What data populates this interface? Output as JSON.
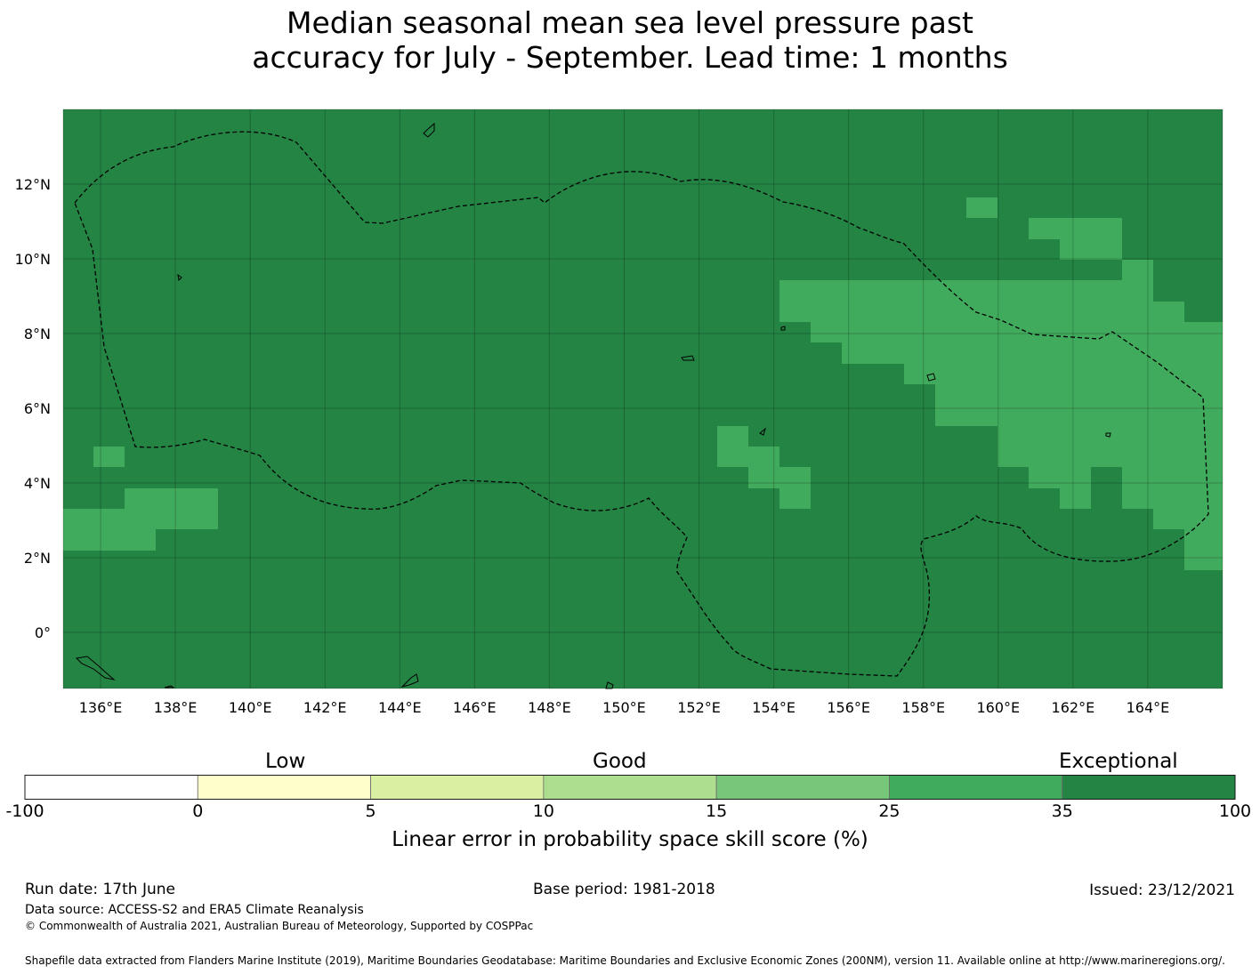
{
  "title": {
    "line1": "Median seasonal mean sea level pressure past",
    "line2": "accuracy for July - September. Lead time: 1 months"
  },
  "map": {
    "lon_range": [
      135,
      166
    ],
    "lat_range": [
      -1.5,
      14
    ],
    "x_ticks": [
      "136°E",
      "138°E",
      "140°E",
      "142°E",
      "144°E",
      "146°E",
      "148°E",
      "150°E",
      "152°E",
      "154°E",
      "156°E",
      "158°E",
      "160°E",
      "162°E",
      "164°E"
    ],
    "y_ticks": [
      "12°N",
      "10°N",
      "8°N",
      "6°N",
      "4°N",
      "2°N",
      "0°"
    ],
    "base_color": "#238443",
    "patch_color": "#41ab5d",
    "grid": true
  },
  "colorbar": {
    "category_labels": [
      "Low",
      "Good",
      "Exceptional"
    ],
    "ticks": [
      "-100",
      "0",
      "5",
      "10",
      "15",
      "25",
      "35",
      "100"
    ],
    "colors": [
      "#ffffff",
      "#ffffcc",
      "#d9f0a3",
      "#addd8e",
      "#78c679",
      "#41ab5d",
      "#238443"
    ],
    "label": "Linear error in probability space skill score (%)"
  },
  "footer": {
    "run_date": "Run date: 17th June",
    "base_period": "Base period: 1981-2018",
    "issued": "Issued: 23/12/2021",
    "data_source": "Data source: ACCESS-S2 and ERA5 Climate Reanalysis",
    "copyright": "© Commonwealth of Australia 2021, Australian Bureau of Meteorology, Supported by COSPPac",
    "shapefile": "Shapefile data extracted from Flanders Marine Institute (2019), Maritime Boundaries Geodatabase: Maritime Boundaries and Exclusive Economic Zones (200NM), version 11. Available online at http://www.marineregions.org/."
  }
}
